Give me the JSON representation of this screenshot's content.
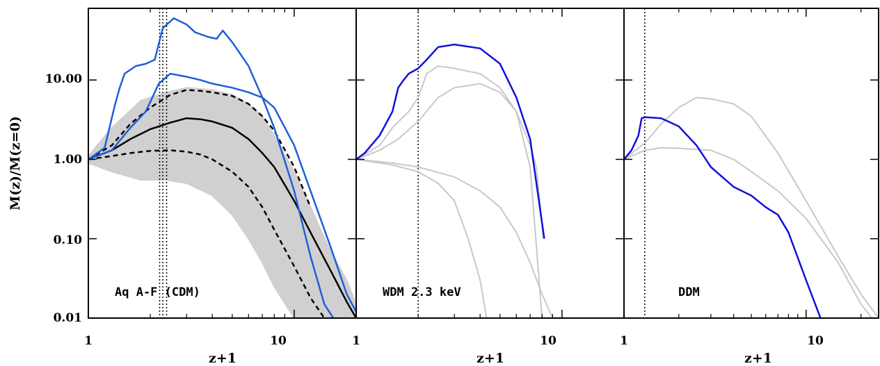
{
  "chart_data": {
    "type": "line",
    "ylabel": "M(z)/M(z=0)",
    "xlabel": "z+1",
    "y_scale": "log",
    "x_scale": "log",
    "ylim": [
      0.01,
      80
    ],
    "yticks": [
      "10.00",
      "1.00",
      "0.10",
      "0.01"
    ],
    "colors": {
      "gray": "#c8c8c8",
      "blue_cdm": "#1f5fd6",
      "blue": "#1010dd",
      "black": "#000000"
    },
    "panels": [
      {
        "label": "Aq A-F (CDM)",
        "xlim": [
          1,
          20
        ],
        "xticks": [
          "1",
          "10"
        ],
        "vlines": [
          2.22,
          2.3,
          2.4
        ],
        "gray_band": {
          "x": [
            1,
            1.3,
            1.8,
            2.4,
            3,
            4,
            5,
            6,
            7,
            8,
            10,
            12,
            15,
            18,
            20
          ],
          "upper": [
            1.1,
            2.5,
            5.5,
            7,
            8,
            7.5,
            6.5,
            5,
            3.5,
            2,
            0.7,
            0.25,
            0.07,
            0.03,
            0.015
          ],
          "lower": [
            0.9,
            0.7,
            0.55,
            0.55,
            0.5,
            0.35,
            0.2,
            0.1,
            0.05,
            0.025,
            0.01,
            0.01,
            0.01,
            0.01,
            0.01
          ]
        },
        "series": [
          {
            "style": "solid",
            "color": "black",
            "x": [
              1,
              1.3,
              1.6,
              2.0,
              2.5,
              3.0,
              3.5,
              4,
              5,
              6,
              7,
              8,
              10,
              12,
              15,
              18,
              20
            ],
            "y": [
              1.0,
              1.3,
              1.8,
              2.4,
              2.9,
              3.3,
              3.2,
              3.0,
              2.5,
              1.8,
              1.2,
              0.8,
              0.3,
              0.12,
              0.04,
              0.016,
              0.01
            ]
          },
          {
            "style": "dashed",
            "color": "black",
            "x": [
              1,
              1.3,
              1.6,
              2.0,
              2.5,
              3.0,
              3.5,
              4,
              5,
              6,
              7,
              8,
              10,
              12
            ],
            "y": [
              1.0,
              1.5,
              2.8,
              4.5,
              6.5,
              7.5,
              7.3,
              7.0,
              6.3,
              5.0,
              3.5,
              2.3,
              0.8,
              0.25
            ]
          },
          {
            "style": "dashed",
            "color": "black",
            "x": [
              1,
              1.3,
              1.6,
              2.0,
              2.5,
              3.0,
              3.5,
              4,
              5,
              6,
              7,
              8,
              10,
              12,
              14
            ],
            "y": [
              1.0,
              1.1,
              1.2,
              1.28,
              1.3,
              1.25,
              1.15,
              1.0,
              0.7,
              0.45,
              0.25,
              0.13,
              0.045,
              0.018,
              0.01
            ]
          },
          {
            "style": "solid",
            "color": "blue_cdm",
            "x": [
              1,
              1.2,
              1.35,
              1.42,
              1.5,
              1.7,
              1.9,
              2.1,
              2.3,
              2.6,
              3.0,
              3.3,
              3.8,
              4.2,
              4.5,
              5,
              6,
              7,
              8,
              10,
              12,
              14,
              15.5
            ],
            "y": [
              1.0,
              1.4,
              5.0,
              8.0,
              12,
              15,
              16,
              18,
              45,
              60,
              50,
              40,
              35,
              33,
              42,
              30,
              15,
              6,
              2.5,
              0.4,
              0.06,
              0.015,
              0.01
            ]
          },
          {
            "style": "solid",
            "color": "blue_cdm",
            "x": [
              1,
              1.3,
              1.6,
              1.9,
              2.2,
              2.5,
              3.0,
              3.5,
              4,
              5,
              6,
              7,
              8,
              10,
              12,
              15,
              18,
              20
            ],
            "y": [
              1.0,
              1.3,
              2.5,
              4.0,
              9.0,
              12,
              11,
              10,
              9,
              8,
              7,
              6,
              4.5,
              1.5,
              0.4,
              0.08,
              0.02,
              0.012
            ]
          }
        ]
      },
      {
        "label": "WDM 2.3 keV",
        "xlim": [
          1,
          20
        ],
        "xticks": [
          "1",
          "10"
        ],
        "vlines": [
          2.0
        ],
        "series": [
          {
            "style": "solid",
            "color": "gray",
            "x": [
              1,
              1.3,
              1.5,
              1.8,
              2.0,
              2.2,
              2.5,
              3,
              4,
              5,
              6,
              7,
              7.5,
              7.8,
              8.1
            ],
            "y": [
              1.0,
              1.5,
              2.5,
              4,
              6,
              12,
              15,
              14,
              12,
              8,
              4,
              1.5,
              0.8,
              0.3,
              0.1
            ]
          },
          {
            "style": "solid",
            "color": "gray",
            "x": [
              1,
              1.3,
              1.6,
              2.0,
              2.5,
              3,
              4,
              5,
              6,
              7,
              8
            ],
            "y": [
              1.0,
              1.3,
              1.8,
              3,
              6,
              8,
              9,
              7,
              4,
              0.8,
              0.01
            ]
          },
          {
            "style": "solid",
            "color": "gray",
            "x": [
              1,
              1.5,
              2.0,
              3,
              4,
              5,
              6,
              7,
              8,
              9,
              10
            ],
            "y": [
              1.0,
              0.9,
              0.8,
              0.6,
              0.4,
              0.25,
              0.12,
              0.05,
              0.02,
              0.01,
              0.01
            ]
          },
          {
            "style": "solid",
            "color": "gray",
            "x": [
              1,
              1.5,
              2.0,
              2.5,
              3,
              3.5,
              4,
              4.3
            ],
            "y": [
              1.0,
              0.85,
              0.7,
              0.5,
              0.3,
              0.1,
              0.03,
              0.01
            ]
          },
          {
            "style": "solid",
            "color": "blue",
            "x": [
              1,
              1.1,
              1.3,
              1.5,
              1.6,
              1.7,
              1.8,
              2.0,
              2.2,
              2.5,
              3.0,
              4,
              5,
              6,
              7,
              8.2
            ],
            "y": [
              1.0,
              1.2,
              2.0,
              4.0,
              8,
              10,
              12,
              14,
              18,
              26,
              28,
              25,
              16,
              6,
              1.8,
              0.1
            ]
          }
        ]
      },
      {
        "label": "DDM",
        "xlim": [
          1,
          25
        ],
        "xticks": [
          "1",
          "10"
        ],
        "vlines": [
          1.3
        ],
        "series": [
          {
            "style": "solid",
            "color": "gray",
            "x": [
              1,
              1.3,
              1.6,
              2.0,
              2.5,
              3.0,
              4,
              5,
              7,
              10,
              15,
              20,
              25
            ],
            "y": [
              1.0,
              1.6,
              2.8,
              4.5,
              6.0,
              5.8,
              5.0,
              3.5,
              1.2,
              0.3,
              0.06,
              0.02,
              0.01
            ]
          },
          {
            "style": "solid",
            "color": "gray",
            "x": [
              1,
              1.3,
              1.6,
              2.0,
              3,
              4,
              5,
              7,
              10,
              15,
              20,
              23
            ],
            "y": [
              1.0,
              1.3,
              1.4,
              1.38,
              1.3,
              1.0,
              0.7,
              0.4,
              0.18,
              0.05,
              0.015,
              0.01
            ]
          },
          {
            "style": "solid",
            "color": "blue",
            "x": [
              1,
              1.1,
              1.2,
              1.25,
              1.3,
              1.6,
              2.0,
              2.5,
              3,
              4,
              5,
              6,
              7,
              8,
              10,
              12
            ],
            "y": [
              1.0,
              1.3,
              2.0,
              3.3,
              3.4,
              3.3,
              2.6,
              1.5,
              0.8,
              0.45,
              0.35,
              0.25,
              0.2,
              0.12,
              0.03,
              0.01
            ]
          }
        ]
      }
    ]
  }
}
